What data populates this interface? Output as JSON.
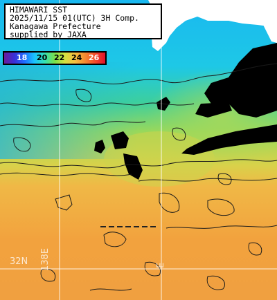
{
  "info": {
    "lines": [
      "HIMAWARI SST",
      "2025/11/15 01(UTC) 3H Comp.",
      "Kanagawa Prefecture",
      "supplied by JAXA"
    ]
  },
  "colorbar": {
    "ticks": [
      "18",
      "20",
      "22",
      "24",
      "26"
    ],
    "stops": [
      "#6a1b9a",
      "#3a2fd6",
      "#1f6cff",
      "#19c3ff",
      "#33e0b4",
      "#79e04a",
      "#d4e040",
      "#f4c040",
      "#f48a30",
      "#f44a2a",
      "#e0102a"
    ]
  },
  "grid_labels": {
    "latitude": "32N",
    "longitude_left": "138E",
    "longitude_right": "E"
  },
  "colors": {
    "land": "#ffffff",
    "cloud": "#000000",
    "contour": "#1a1a1a",
    "grid": "#ffffff"
  }
}
